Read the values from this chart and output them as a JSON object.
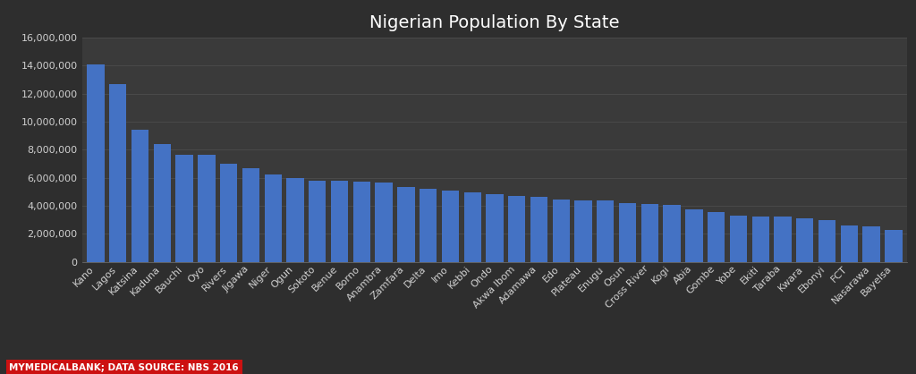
{
  "title": "Nigerian Population By State",
  "background_color": "#2e2e2e",
  "plot_bg_color": "#3a3a3a",
  "bar_color": "#4472c4",
  "text_color": "#d0d0d0",
  "grid_color": "#555555",
  "footer_text": "MYMEDICALBANK; DATA SOURCE: NBS 2016",
  "footer_bg": "#cc1111",
  "footer_text_color": "#ffffff",
  "ylim": [
    0,
    16000000
  ],
  "yticks": [
    0,
    2000000,
    4000000,
    6000000,
    8000000,
    10000000,
    12000000,
    14000000,
    16000000
  ],
  "categories": [
    "Kano",
    "Lagos",
    "Katsina",
    "Kaduna",
    "Bauchi",
    "Oyo",
    "Rivers",
    "Jigawa",
    "Niger",
    "Ogun",
    "Sokoto",
    "Benue",
    "Borno",
    "Anambra",
    "Zamfara",
    "Delta",
    "Imo",
    "Kebbi",
    "Ondo",
    "Akwa Ibom",
    "Adamawa",
    "Edo",
    "Plateau",
    "Enugu",
    "Osun",
    "Cross River",
    "Kogi",
    "Abia",
    "Gombe",
    "Yobe",
    "Ekiti",
    "Taraba",
    "Kwara",
    "Ebonyi",
    "FCT",
    "Nasarawa",
    "Bayelsa"
  ],
  "values": [
    14100000,
    12700000,
    9400000,
    8400000,
    7600000,
    7600000,
    7000000,
    6700000,
    6200000,
    5950000,
    5800000,
    5750000,
    5700000,
    5650000,
    5350000,
    5200000,
    5050000,
    4950000,
    4850000,
    4700000,
    4600000,
    4450000,
    4400000,
    4350000,
    4200000,
    4100000,
    4050000,
    3750000,
    3550000,
    3300000,
    3200000,
    3200000,
    3100000,
    2950000,
    2600000,
    2500000,
    2300000
  ],
  "title_fontsize": 14,
  "tick_fontsize": 8,
  "bar_width": 0.78
}
